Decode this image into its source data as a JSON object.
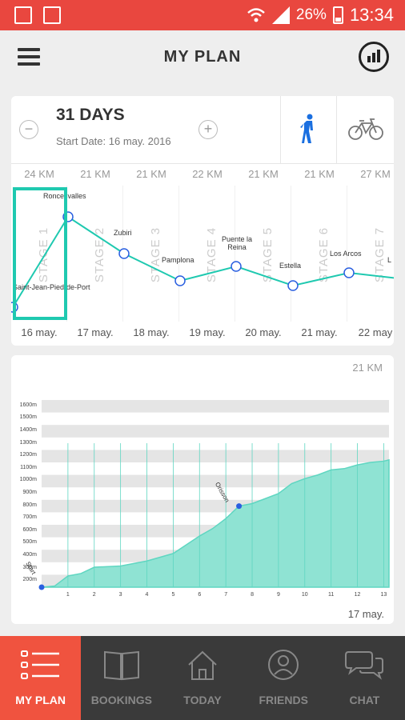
{
  "status_bar": {
    "battery": "26%",
    "time": "13:34"
  },
  "app": {
    "title": "MY PLAN"
  },
  "plan": {
    "days_label": "31 DAYS",
    "start_date": "Start Date: 16 may. 2016",
    "stages": [
      {
        "label": "STAGE 1",
        "km": "24 KM",
        "date": "16 may."
      },
      {
        "label": "STAGE 2",
        "km": "21 KM",
        "date": "17 may."
      },
      {
        "label": "STAGE 3",
        "km": "21 KM",
        "date": "18 may."
      },
      {
        "label": "STAGE 4",
        "km": "22 KM",
        "date": "19 may."
      },
      {
        "label": "STAGE 5",
        "km": "21 KM",
        "date": "20 may."
      },
      {
        "label": "STAGE 6",
        "km": "21 KM",
        "date": "21 may."
      },
      {
        "label": "STAGE 7",
        "km": "27 KM",
        "date": "22 may"
      }
    ],
    "places": [
      "Saint-Jean-Pied-de-Port",
      "Roncesvalles",
      "Zubiri",
      "Pamplona",
      "Puente la Reina",
      "Estella",
      "Los Arcos",
      "L"
    ]
  },
  "elevation": {
    "km_label": "21 KM",
    "date_label": "17 may.",
    "start_marker": "Start",
    "point_label": "Orisson",
    "y_ticks": [
      "1600m",
      "1500m",
      "1400m",
      "1300m",
      "1200m",
      "1100m",
      "1000m",
      "900m",
      "800m",
      "700m",
      "600m",
      "500m",
      "400m",
      "300m",
      "200m"
    ],
    "x_ticks": [
      "1",
      "2",
      "3",
      "4",
      "5",
      "6",
      "7",
      "8",
      "9",
      "10",
      "11",
      "12",
      "13"
    ]
  },
  "chart_data": {
    "type": "area",
    "title": "",
    "xlabel": "",
    "ylabel": "",
    "x": [
      0,
      0.5,
      1,
      1.5,
      2,
      3,
      4,
      5,
      6,
      6.5,
      7,
      7.5,
      8,
      8.5,
      9,
      9.5,
      10,
      10.5,
      11,
      11.5,
      12,
      12.5,
      13,
      13.2
    ],
    "y": [
      150,
      160,
      240,
      260,
      310,
      320,
      360,
      420,
      560,
      620,
      700,
      800,
      820,
      860,
      900,
      980,
      1020,
      1050,
      1090,
      1100,
      1130,
      1150,
      1160,
      1170
    ],
    "xlim": [
      0,
      13.2
    ],
    "ylim": [
      150,
      1650
    ],
    "grid": true,
    "accent": "#5fd6c1",
    "fill": "#8fe3d3"
  },
  "colors": {
    "statusbar": "#e9473f",
    "accent": "#1fc9b0",
    "active_nav": "#f0533f",
    "nav_bg": "#3a3a3a",
    "walker": "#1a6fe0"
  },
  "nav": {
    "items": [
      {
        "label": "MY PLAN",
        "icon": "list-icon"
      },
      {
        "label": "BOOKINGS",
        "icon": "book-icon"
      },
      {
        "label": "TODAY",
        "icon": "house-icon"
      },
      {
        "label": "FRIENDS",
        "icon": "person-icon"
      },
      {
        "label": "CHAT",
        "icon": "chat-icon"
      }
    ]
  }
}
